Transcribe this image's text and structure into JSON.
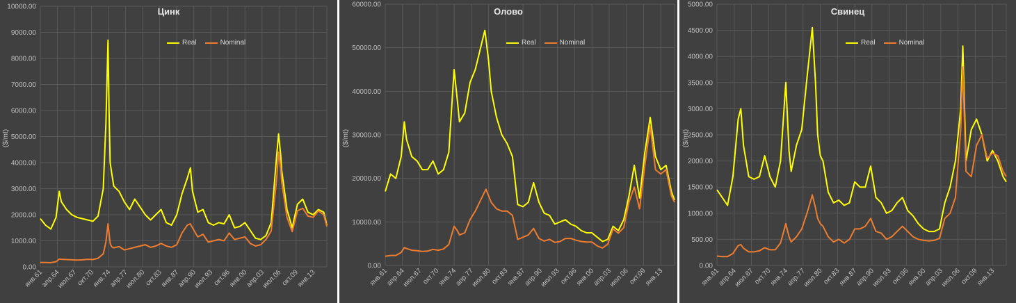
{
  "colors": {
    "real": "#ffff00",
    "nominal": "#ed7d31",
    "background": "#404040",
    "grid": "#595959",
    "text": "#bfbfbf"
  },
  "legend": {
    "real": "Real",
    "nominal": "Nominal"
  },
  "x_tick_labels": [
    "янв.61",
    "апр.64",
    "июл.67",
    "окт.70",
    "янв.74",
    "апр.77",
    "июл.80",
    "окт.83",
    "янв.87",
    "апр.90",
    "июл.93",
    "окт.96",
    "янв.00",
    "апр.03",
    "июл.06",
    "окт.09",
    "янв.13"
  ],
  "x_range": [
    1961.0,
    2015.6
  ],
  "chart_data": [
    {
      "type": "line",
      "title": "Цинк",
      "ylabel": "($/mt)",
      "ylim": [
        0,
        10000
      ],
      "y_tick_labels": [
        "0.00",
        "1000.00",
        "2000.00",
        "3000.00",
        "4000.00",
        "5000.00",
        "6000.00",
        "7000.00",
        "8000.00",
        "9000.00",
        "10000.00"
      ],
      "x": [
        1961,
        1962,
        1963,
        1964,
        1964.6,
        1965,
        1966,
        1967,
        1968,
        1969,
        1970,
        1971,
        1972,
        1973,
        1973.5,
        1973.9,
        1974.1,
        1974.3,
        1974.6,
        1975,
        1976,
        1977,
        1978,
        1979,
        1980,
        1981,
        1982,
        1983,
        1984,
        1985,
        1986,
        1987,
        1988,
        1989,
        1989.6,
        1990,
        1991,
        1992,
        1993,
        1994,
        1995,
        1996,
        1997,
        1998,
        1999,
        2000,
        2001,
        2002,
        2003,
        2004,
        2005,
        2006,
        2006.4,
        2006.8,
        2007,
        2008,
        2009,
        2010,
        2011,
        2012,
        2013,
        2014,
        2015,
        2015.6
      ],
      "series": [
        {
          "name": "Real",
          "values": [
            1850,
            1600,
            1450,
            1900,
            2900,
            2500,
            2200,
            2000,
            1900,
            1850,
            1800,
            1750,
            1950,
            3000,
            5500,
            8700,
            6000,
            4000,
            3600,
            3100,
            2900,
            2500,
            2200,
            2600,
            2300,
            2000,
            1800,
            2000,
            2200,
            1700,
            1600,
            2000,
            2800,
            3400,
            3800,
            2900,
            2100,
            2200,
            1700,
            1600,
            1700,
            1650,
            2000,
            1500,
            1550,
            1700,
            1400,
            1100,
            1050,
            1200,
            1700,
            4200,
            5100,
            4300,
            3700,
            2200,
            1500,
            2400,
            2600,
            2100,
            2000,
            2200,
            2100,
            1600
          ]
        },
        {
          "name": "Nominal",
          "values": [
            170,
            165,
            160,
            200,
            300,
            290,
            280,
            270,
            260,
            270,
            290,
            280,
            330,
            500,
            950,
            1650,
            1300,
            900,
            770,
            730,
            780,
            650,
            700,
            750,
            800,
            850,
            750,
            800,
            900,
            800,
            750,
            850,
            1300,
            1600,
            1650,
            1500,
            1150,
            1250,
            950,
            1000,
            1050,
            1000,
            1300,
            1050,
            1100,
            1150,
            900,
            800,
            850,
            1050,
            1380,
            3300,
            4400,
            3800,
            3250,
            1900,
            1350,
            2150,
            2250,
            1950,
            1900,
            2150,
            2000,
            1550
          ]
        }
      ]
    },
    {
      "type": "line",
      "title": "Олово",
      "ylabel": "($/mt)",
      "ylim": [
        0,
        60000
      ],
      "y_tick_labels": [
        "0.00",
        "10000.00",
        "20000.00",
        "30000.00",
        "40000.00",
        "50000.00",
        "60000.00"
      ],
      "x": [
        1961,
        1962,
        1963,
        1964,
        1964.6,
        1965,
        1966,
        1967,
        1968,
        1969,
        1970,
        1971,
        1972,
        1973,
        1974,
        1974.6,
        1975,
        1976,
        1977,
        1978,
        1979,
        1979.8,
        1980,
        1980.5,
        1981,
        1982,
        1983,
        1984,
        1985,
        1986,
        1987,
        1988,
        1989,
        1990,
        1991,
        1992,
        1993,
        1994,
        1995,
        1996,
        1997,
        1998,
        1999,
        2000,
        2001,
        2002,
        2003,
        2004,
        2005,
        2006,
        2007,
        2008,
        2009,
        2010,
        2011,
        2012,
        2013,
        2014,
        2015,
        2015.6
      ],
      "series": [
        {
          "name": "Real",
          "values": [
            17000,
            21000,
            20000,
            25000,
            33000,
            29000,
            25000,
            24000,
            22000,
            22000,
            24000,
            21000,
            22000,
            26000,
            45000,
            38000,
            33000,
            35000,
            42000,
            45000,
            50000,
            54000,
            52000,
            47000,
            40000,
            34000,
            30000,
            28000,
            25000,
            14000,
            13500,
            14500,
            19000,
            14500,
            12000,
            11500,
            9500,
            10000,
            10500,
            9500,
            9000,
            8000,
            7500,
            7500,
            6500,
            5500,
            6000,
            9000,
            8000,
            10500,
            16000,
            23000,
            15500,
            26000,
            34000,
            25000,
            22000,
            23000,
            17000,
            15000
          ]
        },
        {
          "name": "Nominal",
          "values": [
            2100,
            2300,
            2300,
            3000,
            4100,
            3900,
            3500,
            3400,
            3200,
            3300,
            3700,
            3500,
            3800,
            4800,
            9000,
            8000,
            7000,
            7500,
            10500,
            12500,
            15000,
            17000,
            17500,
            16000,
            14500,
            13000,
            12500,
            12500,
            11500,
            6000,
            6500,
            7000,
            8500,
            6200,
            5600,
            6000,
            5300,
            5500,
            6200,
            6200,
            5800,
            5500,
            5400,
            5400,
            4500,
            4000,
            4900,
            8400,
            7400,
            8700,
            14500,
            18000,
            13000,
            23000,
            32000,
            22000,
            21000,
            22000,
            16000,
            14500
          ]
        }
      ]
    },
    {
      "type": "line",
      "title": "Свинец",
      "ylabel": "($/mt)",
      "ylim": [
        0,
        5000
      ],
      "y_tick_labels": [
        "0.00",
        "500.00",
        "1000.00",
        "1500.00",
        "2000.00",
        "2500.00",
        "3000.00",
        "3500.00",
        "4000.00",
        "4500.00",
        "5000.00"
      ],
      "x": [
        1961,
        1962,
        1963,
        1964,
        1965,
        1965.5,
        1966,
        1967,
        1968,
        1969,
        1970,
        1971,
        1972,
        1973,
        1974,
        1974.6,
        1975,
        1976,
        1977,
        1978,
        1979,
        1979.6,
        1980,
        1980.5,
        1981,
        1982,
        1983,
        1984,
        1985,
        1986,
        1987,
        1988,
        1989,
        1990,
        1991,
        1992,
        1993,
        1994,
        1995,
        1996,
        1997,
        1998,
        1999,
        2000,
        2001,
        2002,
        2003,
        2004,
        2005,
        2006,
        2007,
        2007.4,
        2008,
        2009,
        2010,
        2011,
        2012,
        2013,
        2014,
        2015,
        2015.6
      ],
      "series": [
        {
          "name": "Real",
          "values": [
            1450,
            1300,
            1150,
            1700,
            2800,
            3000,
            2300,
            1700,
            1650,
            1700,
            2100,
            1700,
            1500,
            2000,
            3500,
            2200,
            1800,
            2300,
            2600,
            3600,
            4550,
            3500,
            2500,
            2100,
            2000,
            1400,
            1200,
            1250,
            1150,
            1200,
            1600,
            1500,
            1500,
            1900,
            1300,
            1200,
            1000,
            1050,
            1200,
            1300,
            1050,
            950,
            800,
            700,
            650,
            650,
            700,
            1200,
            1500,
            2000,
            3000,
            4200,
            2000,
            2600,
            2800,
            2500,
            2000,
            2200,
            2000,
            1700,
            1600
          ]
        },
        {
          "name": "Nominal",
          "values": [
            180,
            170,
            170,
            230,
            380,
            400,
            330,
            260,
            260,
            280,
            340,
            300,
            300,
            430,
            800,
            550,
            450,
            550,
            700,
            1000,
            1350,
            1100,
            900,
            800,
            750,
            550,
            450,
            500,
            430,
            500,
            700,
            700,
            750,
            900,
            650,
            620,
            500,
            550,
            650,
            750,
            650,
            550,
            500,
            480,
            470,
            480,
            520,
            900,
            1000,
            1300,
            2600,
            3800,
            1800,
            1700,
            2300,
            2500,
            2050,
            2150,
            2100,
            1800,
            1700
          ]
        }
      ]
    }
  ]
}
